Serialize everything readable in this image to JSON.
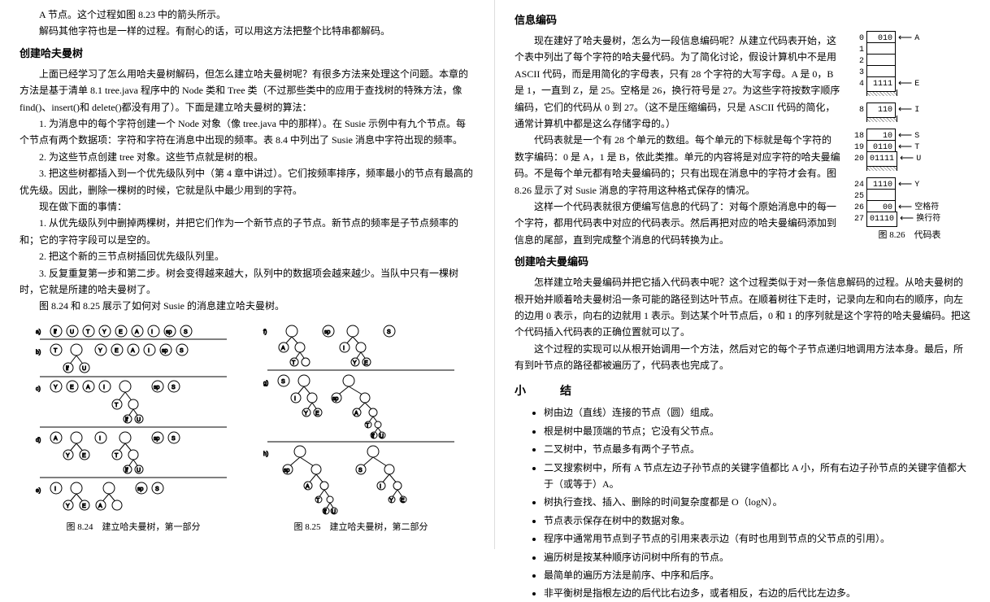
{
  "left": {
    "line1": "A 节点。这个过程如图 8.23 中的箭头所示。",
    "line2": "解码其他字符也是一样的过程。有耐心的话，可以用这方法把整个比特串都解码。",
    "h1": "创建哈夫曼树",
    "p1": "上面已经学习了怎么用哈夫曼树解码，但怎么建立哈夫曼树呢？有很多方法来处理这个问题。本章的方法是基于清单 8.1 tree.java 程序中的 Node 类和 Tree 类（不过那些类中的应用于查找树的特殊方法，像 find()、insert()和 delete()都没有用了）。下面是建立哈夫曼树的算法：",
    "p2": "1. 为消息中的每个字符创建一个 Node 对象（像 tree.java 中的那样）。在 Susie 示例中有九个节点。每个节点有两个数据项：字符和字符在消息中出现的频率。表 8.4 中列出了 Susie 消息中字符出现的频率。",
    "p3": "2. 为这些节点创建 tree 对象。这些节点就是树的根。",
    "p4": "3. 把这些树都插入到一个优先级队列中（第 4 章中讲过）。它们按频率排序，频率最小的节点有最高的优先级。因此，删除一棵树的时候，它就是队中最少用到的字符。",
    "p5": "现在做下面的事情：",
    "p6": "1. 从优先级队列中删掉两棵树，并把它们作为一个新节点的子节点。新节点的频率是子节点频率的和；它的字符字段可以是空的。",
    "p7": "2. 把这个新的三节点树插回优先级队列里。",
    "p8": "3. 反复重复第一步和第二步。树会变得越来越大，队列中的数据项会越来越少。当队中只有一棵树时，它就是所建的哈夫曼树了。",
    "p9": "图 8.24 和 8.25 展示了如何对 Susie 的消息建立哈夫曼树。",
    "cap1": "图 8.24　建立哈夫曼树，第一部分",
    "cap2": "图 8.25　建立哈夫曼树，第二部分"
  },
  "right": {
    "h1": "信息编码",
    "p1": "现在建好了哈夫曼树，怎么为一段信息编码呢？从建立代码表开始，这个表中列出了每个字符的哈夫曼代码。为了简化讨论，假设计算机中不是用 ASCII 代码，而是用简化的字母表，只有 28 个字符的大写字母。A 是 0，B 是 1，一直到 Z，是 25。空格是 26，换行符号是 27。为这些字符按数字顺序编码，它们的代码从 0 到 27。（这不是压缩编码，只是 ASCII 代码的简化，通常计算机中都是这么存储字母的。）",
    "p2": "代码表就是一个有 28 个单元的数组。每个单元的下标就是每个字符的数字编码：0 是 A，1 是 B，依此类推。单元的内容将是对应字符的哈夫曼编码。不是每个单元都有哈夫曼编码的；只有出现在消息中的字符才会有。图 8.26 显示了对 Susie 消息的字符用这种格式保存的情况。",
    "p3": "这样一个代码表就很方便编写信息的代码了：对每个原始消息中的每一个字符，都用代码表中对应的代码表示。然后再把对应的哈夫曼编码添加到信息的尾部，直到完成整个消息的代码转换为止。",
    "h2": "创建哈夫曼编码",
    "p4": "怎样建立哈夫曼编码并把它插入代码表中呢？这个过程类似于对一条信息解码的过程。从哈夫曼树的根开始并顺着哈夫曼树沿一条可能的路径到达叶节点。在顺着树往下走时，记录向左和向右的顺序，向左的边用 0 表示，向右的边就用 1 表示。到达某个叶节点后，0 和 1 的序列就是这个字符的哈夫曼编码。把这个代码插入代码表的正确位置就可以了。",
    "p5": "这个过程的实现可以从根开始调用一个方法，然后对它的每个子节点递归地调用方法本身。最后，所有到叶节点的路径都被遍历了，代码表也完成了。",
    "codetable": [
      {
        "idx": "0",
        "code": "010",
        "ch": "A"
      },
      {
        "idx": "1",
        "code": "",
        "ch": ""
      },
      {
        "idx": "2",
        "code": "",
        "ch": ""
      },
      {
        "idx": "3",
        "code": "",
        "ch": ""
      },
      {
        "idx": "4",
        "code": "1111",
        "ch": "E"
      },
      {
        "wavy": true
      },
      {
        "idx": "8",
        "code": "110",
        "ch": "I"
      },
      {
        "wavy": true
      },
      {
        "idx": "18",
        "code": "10",
        "ch": "S"
      },
      {
        "idx": "19",
        "code": "0110",
        "ch": "T"
      },
      {
        "idx": "20",
        "code": "01111",
        "ch": "U"
      },
      {
        "wavy": true
      },
      {
        "idx": "24",
        "code": "1110",
        "ch": "Y"
      },
      {
        "idx": "25",
        "code": "",
        "ch": ""
      },
      {
        "idx": "26",
        "code": "00",
        "ch": "空格符"
      },
      {
        "idx": "27",
        "code": "01110",
        "ch": "换行符"
      }
    ],
    "codecaption": "图 8.26　代码表",
    "summary_h": "小　结",
    "summary": [
      "树由边（直线）连接的节点（圆）组成。",
      "根是树中最顶端的节点；它没有父节点。",
      "二叉树中，节点最多有两个子节点。",
      "二叉搜索树中，所有 A 节点左边子孙节点的关键字值都比 A 小，所有右边子孙节点的关键字值都大于（或等于）A。",
      "树执行查找、插入、删除的时间复杂度都是 O（logN）。",
      "节点表示保存在树中的数据对象。",
      "程序中通常用节点到子节点的引用来表示边（有时也用到节点的父节点的引用）。",
      "遍历树是按某种顺序访问树中所有的节点。",
      "最简单的遍历方法是前序、中序和后序。",
      "非平衡树是指根左边的后代比右边多，或者相反，右边的后代比左边多。"
    ]
  }
}
